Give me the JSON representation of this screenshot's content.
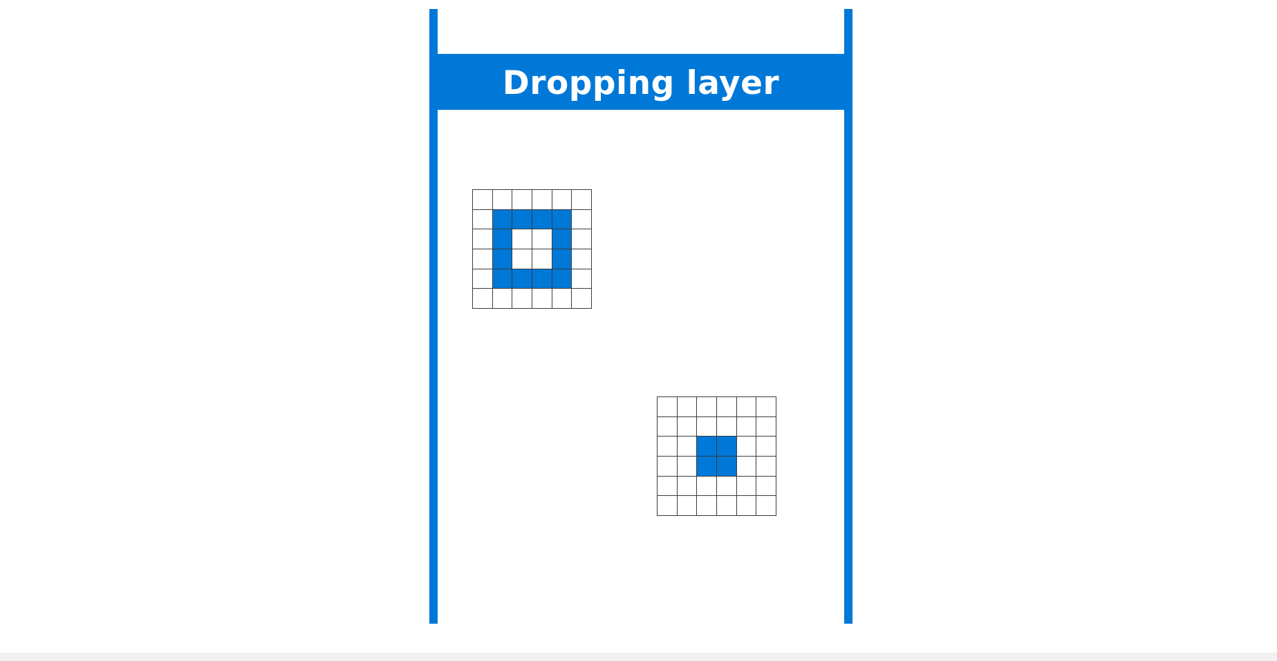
{
  "banner": {
    "title": "Dropping layer"
  },
  "colors": {
    "accent": "#0078d7",
    "grid_line": "#3a3a3a",
    "background": "#ffffff"
  },
  "grids": [
    {
      "name": "ring-pattern-grid",
      "pattern": [
        [
          0,
          0,
          0,
          0,
          0,
          0
        ],
        [
          0,
          1,
          1,
          1,
          1,
          0
        ],
        [
          0,
          1,
          0,
          0,
          1,
          0
        ],
        [
          0,
          1,
          0,
          0,
          1,
          0
        ],
        [
          0,
          1,
          1,
          1,
          1,
          0
        ],
        [
          0,
          0,
          0,
          0,
          0,
          0
        ]
      ]
    },
    {
      "name": "center-pattern-grid",
      "pattern": [
        [
          0,
          0,
          0,
          0,
          0,
          0
        ],
        [
          0,
          0,
          0,
          0,
          0,
          0
        ],
        [
          0,
          0,
          1,
          1,
          0,
          0
        ],
        [
          0,
          0,
          1,
          1,
          0,
          0
        ],
        [
          0,
          0,
          0,
          0,
          0,
          0
        ],
        [
          0,
          0,
          0,
          0,
          0,
          0
        ]
      ]
    }
  ]
}
